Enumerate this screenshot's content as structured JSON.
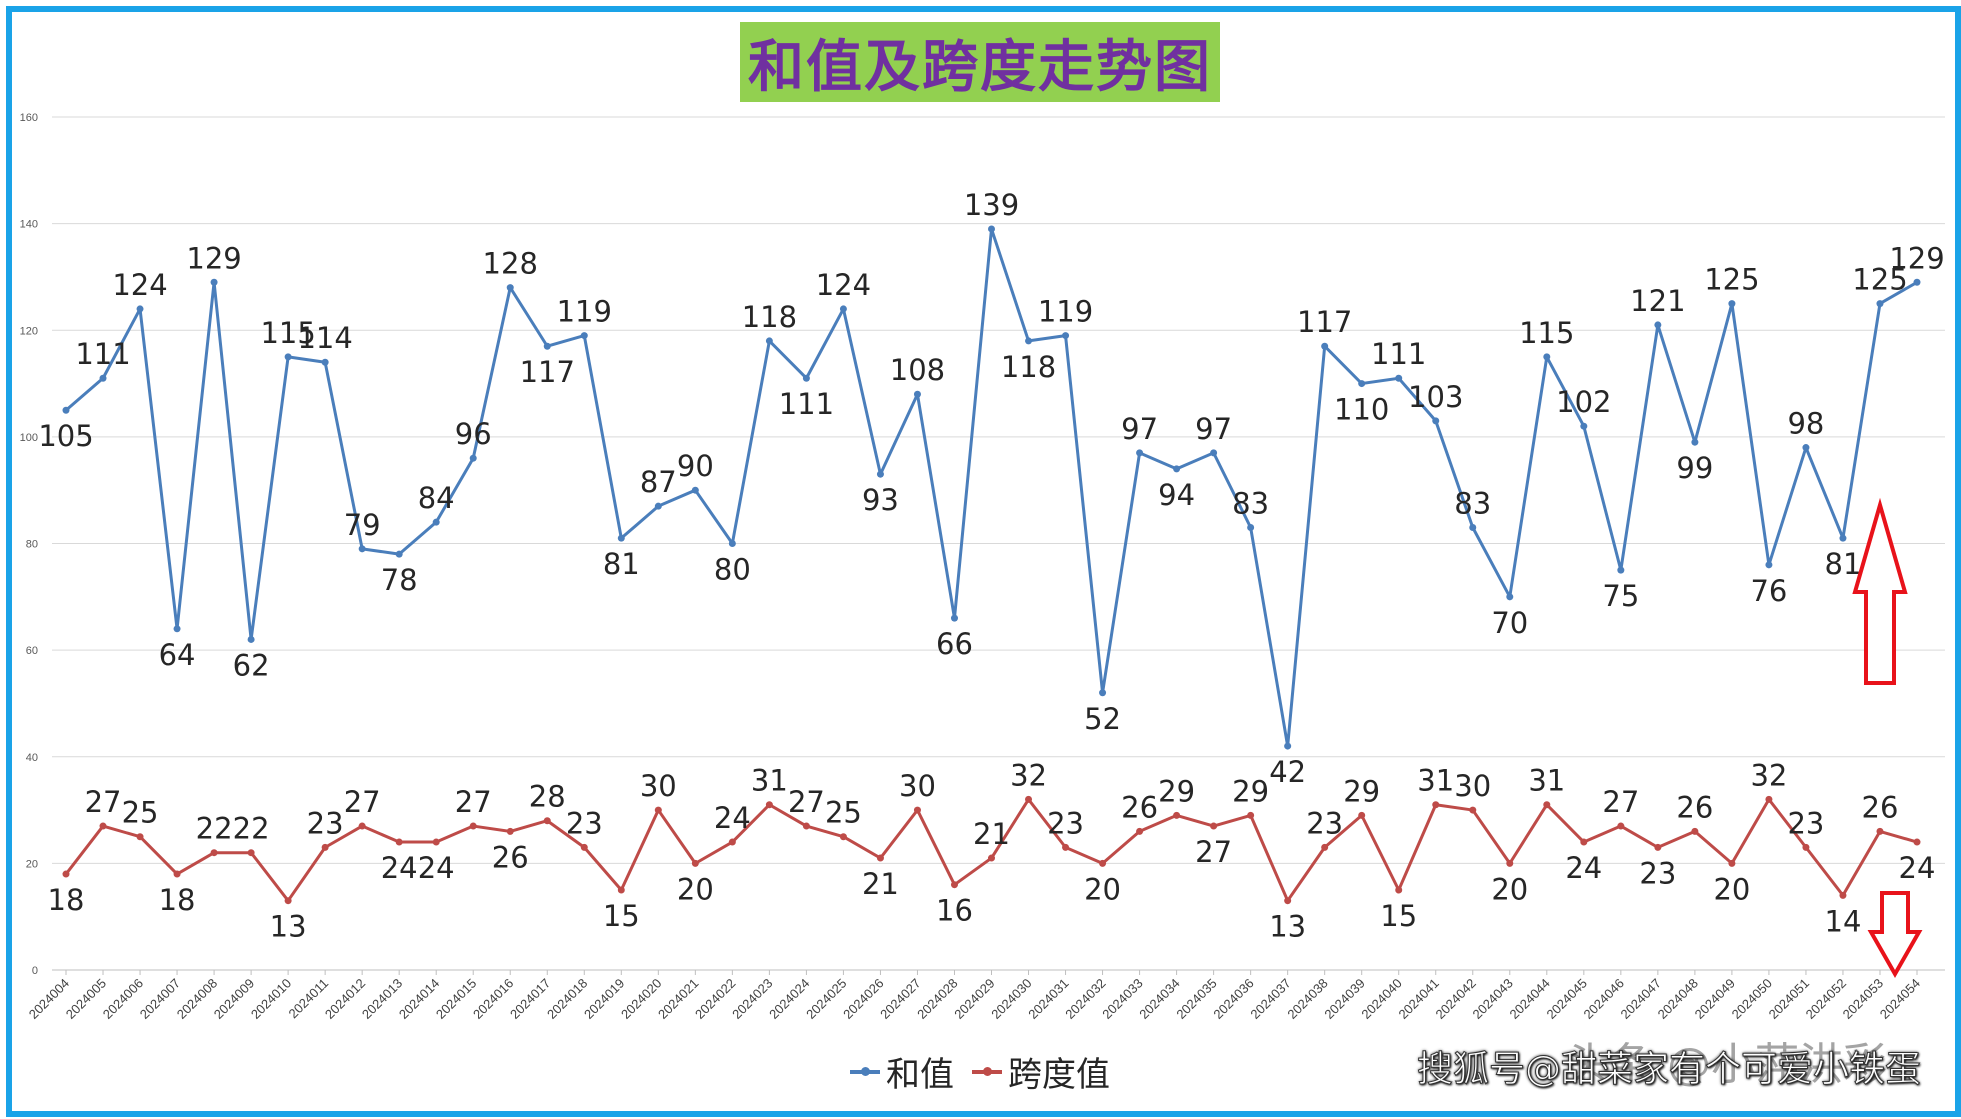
{
  "title": "和值及跨度走势图",
  "watermark": "搜狐号@甜菜家有个可爱小铁蛋",
  "watermark_secondary": "头条 @小萍洪彩",
  "colors": {
    "sum": "#4a7ebb",
    "span": "#be4b48",
    "frame": "#1aa3e8",
    "title_bg": "#92d050",
    "title_fg": "#7030a0",
    "arrow": "#e8121a"
  },
  "chart_data": {
    "type": "line",
    "categories": [
      "2024004",
      "2024005",
      "2024006",
      "2024007",
      "2024008",
      "2024009",
      "2024010",
      "2024011",
      "2024012",
      "2024013",
      "2024014",
      "2024015",
      "2024016",
      "2024017",
      "2024018",
      "2024019",
      "2024020",
      "2024021",
      "2024022",
      "2024023",
      "2024024",
      "2024025",
      "2024026",
      "2024027",
      "2024028",
      "2024029",
      "2024030",
      "2024031",
      "2024032",
      "2024033",
      "2024034",
      "2024035",
      "2024036",
      "2024037",
      "2024038",
      "2024039",
      "2024040",
      "2024041",
      "2024042",
      "2024043",
      "2024044",
      "2024045",
      "2024046",
      "2024047",
      "2024048",
      "2024049",
      "2024050",
      "2024051",
      "2024052",
      "2024053",
      "2024054"
    ],
    "series": [
      {
        "name": "和值",
        "values": [
          105,
          111,
          124,
          64,
          129,
          62,
          115,
          114,
          79,
          78,
          84,
          96,
          128,
          117,
          119,
          81,
          87,
          90,
          80,
          118,
          111,
          124,
          93,
          108,
          66,
          139,
          118,
          119,
          52,
          97,
          94,
          97,
          83,
          42,
          117,
          110,
          111,
          103,
          83,
          70,
          115,
          102,
          75,
          121,
          99,
          125,
          76,
          98,
          81,
          125,
          129
        ]
      },
      {
        "name": "跨度值",
        "values": [
          18,
          27,
          25,
          18,
          22,
          22,
          13,
          23,
          27,
          24,
          24,
          27,
          26,
          28,
          23,
          15,
          30,
          20,
          24,
          31,
          27,
          25,
          21,
          30,
          16,
          21,
          32,
          23,
          20,
          26,
          29,
          27,
          29,
          13,
          23,
          29,
          15,
          31,
          30,
          20,
          31,
          24,
          27,
          23,
          26,
          20,
          32,
          23,
          14,
          26,
          24
        ]
      }
    ],
    "ylim": [
      0,
      160
    ],
    "yticks": [
      0,
      20,
      40,
      60,
      80,
      100,
      120,
      140,
      160
    ],
    "grid": true,
    "legend": "bottom",
    "annotations": [
      "up-arrow near 和值 series end",
      "down-arrow near 跨度值 series end"
    ]
  }
}
